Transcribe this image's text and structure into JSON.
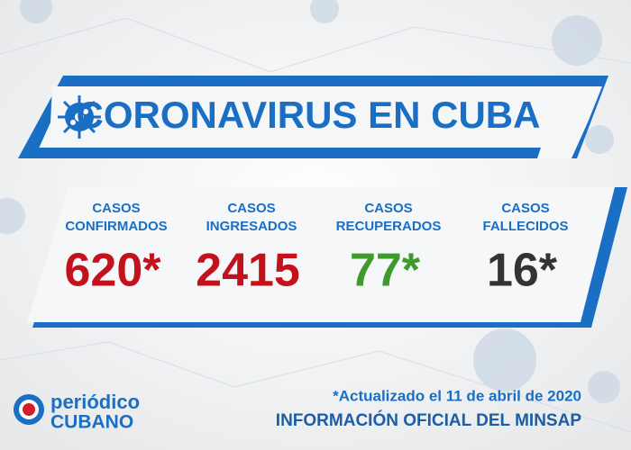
{
  "header": {
    "title": "CORONAVIRUS EN CUBA"
  },
  "cards": [
    {
      "label": [
        "CASOS",
        "CONFIRMADOS"
      ],
      "value": "620*",
      "color": "#c3121c"
    },
    {
      "label": [
        "CASOS",
        "INGRESADOS"
      ],
      "value": "2415",
      "color": "#c3121c"
    },
    {
      "label": [
        "CASOS",
        "RECUPERADOS"
      ],
      "value": "77*",
      "color": "#3e9a2c"
    },
    {
      "label": [
        "CASOS",
        "FALLECIDOS"
      ],
      "value": "16*",
      "color": "#333333"
    }
  ],
  "footer": {
    "updated": "*Actualizado el 11 de abril de 2020",
    "source": "INFORMACIÓN OFICIAL DEL MINSAP"
  },
  "logo": {
    "line1": "periódico",
    "line2": "CUBANO"
  }
}
